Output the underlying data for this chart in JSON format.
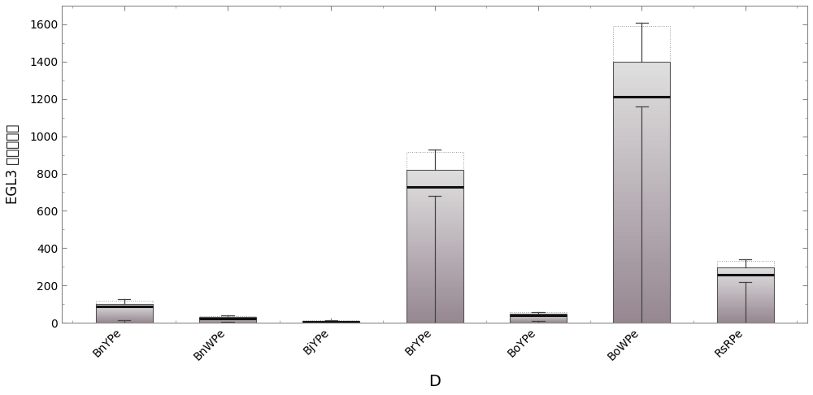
{
  "categories": [
    "BnYPe",
    "BnWPe",
    "BjYPe",
    "BrYPe",
    "BoYPe",
    "BoWPe",
    "RsRPe"
  ],
  "bar_heights": [
    100,
    30,
    10,
    820,
    50,
    1400,
    295
  ],
  "medians": [
    88,
    22,
    7,
    730,
    38,
    1210,
    258
  ],
  "errors_upper": [
    125,
    38,
    14,
    930,
    58,
    1610,
    340
  ],
  "errors_lower": [
    15,
    5,
    2,
    680,
    8,
    1160,
    220
  ],
  "box_upper": [
    120,
    36,
    13,
    915,
    55,
    1590,
    330
  ],
  "ylabel": "EGL3 基因表达量",
  "xlabel": "D",
  "ylim": [
    0,
    1700
  ],
  "yticks": [
    0,
    200,
    400,
    600,
    800,
    1000,
    1200,
    1400,
    1600
  ],
  "bar_color_face": "#cccccc",
  "bar_color_edge": "#666666",
  "bar_width": 0.55,
  "background_color": "#ffffff",
  "median_color": "#111111",
  "error_color": "#444444",
  "box_dot_color": "#888888"
}
